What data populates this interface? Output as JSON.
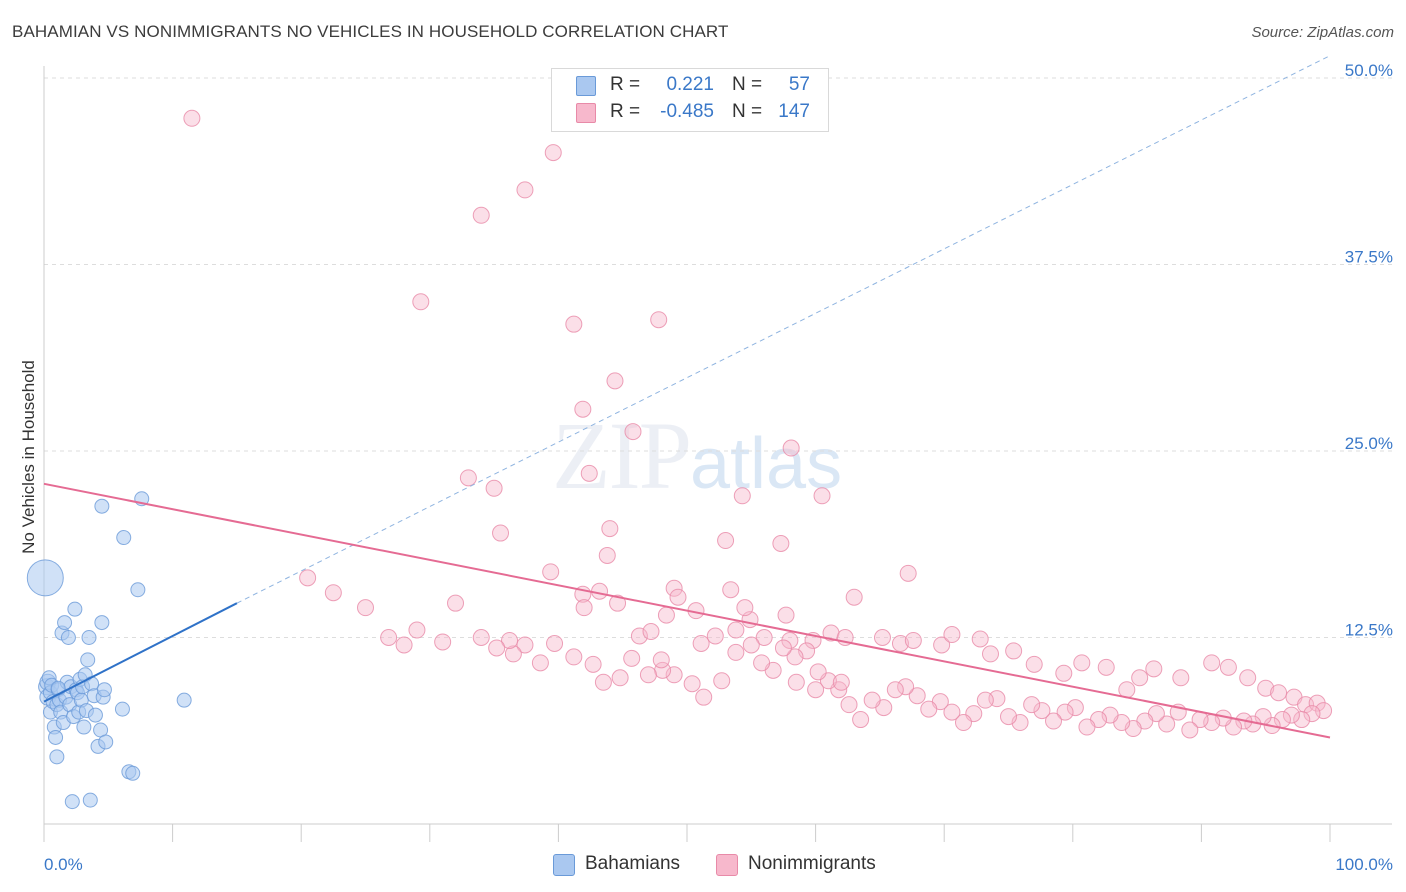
{
  "title": "BAHAMIAN VS NONIMMIGRANTS NO VEHICLES IN HOUSEHOLD CORRELATION CHART",
  "source": "Source: ZipAtlas.com",
  "watermark": {
    "zip": "ZIP",
    "atlas": "atlas"
  },
  "legend": {
    "rows": [
      {
        "r_label": "R =",
        "r_value": "0.221",
        "n_label": "N =",
        "n_value": "57",
        "color": "#aac8f0",
        "border": "#6a9ad8"
      },
      {
        "r_label": "R =",
        "r_value": "-0.485",
        "n_label": "N =",
        "n_value": "147",
        "color": "#f7b8cc",
        "border": "#e88aa8"
      }
    ]
  },
  "bottom_legend": [
    {
      "label": "Bahamians",
      "color": "#aac8f0",
      "border": "#6a9ad8"
    },
    {
      "label": "Nonimmigrants",
      "color": "#f7b8cc",
      "border": "#e88aa8"
    }
  ],
  "chart_data": {
    "type": "scatter",
    "title": "BAHAMIAN VS NONIMMIGRANTS NO VEHICLES IN HOUSEHOLD CORRELATION CHART",
    "xlabel": "",
    "ylabel": "No Vehicles in Household",
    "xlim": [
      0,
      100
    ],
    "ylim": [
      0,
      50
    ],
    "x_tick_labels": [
      "0.0%",
      "100.0%"
    ],
    "y_ticks": [
      12.5,
      25.0,
      37.5,
      50.0
    ],
    "y_tick_labels": [
      "12.5%",
      "25.0%",
      "37.5%",
      "50.0%"
    ],
    "grid": true,
    "legend_position": "top-center",
    "series": [
      {
        "name": "Bahamians",
        "color": "#6a9ad8",
        "fill": "#aac8f0",
        "trend": {
          "x": [
            0,
            15
          ],
          "y": [
            8.2,
            14.8
          ],
          "dashed_extension_to": [
            100,
            51.5
          ],
          "color": "#2f72c8"
        },
        "points": [
          [
            0.1,
            16.5,
            18
          ],
          [
            0.2,
            9.2,
            8
          ],
          [
            0.3,
            9.5,
            8
          ],
          [
            0.3,
            8.5,
            8
          ],
          [
            0.4,
            9.8,
            7
          ],
          [
            0.5,
            8.8,
            7
          ],
          [
            0.5,
            7.5,
            7
          ],
          [
            0.6,
            9.3,
            7
          ],
          [
            0.7,
            8.2,
            7
          ],
          [
            0.8,
            6.5,
            7
          ],
          [
            0.9,
            5.8,
            7
          ],
          [
            1.0,
            4.5,
            7
          ],
          [
            1.0,
            8.0,
            7
          ],
          [
            1.1,
            9.0,
            7
          ],
          [
            1.2,
            8.3,
            7
          ],
          [
            1.3,
            7.5,
            7
          ],
          [
            1.4,
            12.8,
            7
          ],
          [
            1.5,
            6.8,
            7
          ],
          [
            1.6,
            13.5,
            7
          ],
          [
            1.7,
            8.5,
            7
          ],
          [
            1.8,
            9.5,
            7
          ],
          [
            1.9,
            12.5,
            7
          ],
          [
            2.0,
            8.0,
            7
          ],
          [
            2.1,
            9.2,
            7
          ],
          [
            2.2,
            1.5,
            7
          ],
          [
            2.3,
            7.2,
            7
          ],
          [
            2.4,
            14.4,
            7
          ],
          [
            2.5,
            9.0,
            7
          ],
          [
            2.6,
            8.8,
            7
          ],
          [
            2.7,
            7.5,
            7
          ],
          [
            2.8,
            9.7,
            7
          ],
          [
            2.9,
            8.3,
            7
          ],
          [
            3.0,
            9.2,
            7
          ],
          [
            3.1,
            6.5,
            7
          ],
          [
            3.2,
            10.0,
            7
          ],
          [
            3.3,
            7.6,
            7
          ],
          [
            3.4,
            11.0,
            7
          ],
          [
            3.5,
            12.5,
            7
          ],
          [
            3.6,
            1.6,
            7
          ],
          [
            3.7,
            9.4,
            7
          ],
          [
            3.9,
            8.6,
            7
          ],
          [
            4.0,
            7.3,
            7
          ],
          [
            4.2,
            5.2,
            7
          ],
          [
            4.4,
            6.3,
            7
          ],
          [
            4.5,
            13.5,
            7
          ],
          [
            4.6,
            8.5,
            7
          ],
          [
            4.8,
            5.5,
            7
          ],
          [
            4.5,
            21.3,
            7
          ],
          [
            4.7,
            9.0,
            7
          ],
          [
            6.2,
            19.2,
            7
          ],
          [
            6.6,
            3.5,
            7
          ],
          [
            6.9,
            3.4,
            7
          ],
          [
            6.1,
            7.7,
            7
          ],
          [
            7.3,
            15.7,
            7
          ],
          [
            7.6,
            21.8,
            7
          ],
          [
            10.9,
            8.3,
            7
          ],
          [
            1.1,
            9.1,
            7
          ]
        ]
      },
      {
        "name": "Nonimmigrants",
        "color": "#e88aa8",
        "fill": "#f7b8cc",
        "trend": {
          "x": [
            0,
            100
          ],
          "y": [
            22.8,
            5.8
          ],
          "color": "#e56b93"
        },
        "points": [
          [
            11.5,
            47.3
          ],
          [
            34.0,
            40.8
          ],
          [
            37.4,
            42.5
          ],
          [
            39.6,
            45.0
          ],
          [
            29.3,
            35.0
          ],
          [
            41.2,
            33.5
          ],
          [
            47.8,
            33.8
          ],
          [
            44.4,
            29.7
          ],
          [
            41.9,
            27.8
          ],
          [
            45.8,
            26.3
          ],
          [
            42.4,
            23.5
          ],
          [
            35.0,
            22.5
          ],
          [
            33.0,
            23.2
          ],
          [
            54.3,
            22.0
          ],
          [
            58.1,
            25.2
          ],
          [
            60.5,
            22.0
          ],
          [
            35.5,
            19.5
          ],
          [
            43.8,
            18.0
          ],
          [
            44.0,
            19.8
          ],
          [
            53.0,
            19.0
          ],
          [
            57.3,
            18.8
          ],
          [
            39.4,
            16.9
          ],
          [
            49.0,
            15.8
          ],
          [
            63.0,
            15.2
          ],
          [
            67.2,
            16.8
          ],
          [
            53.4,
            15.7
          ],
          [
            48.4,
            14.0
          ],
          [
            57.7,
            14.0
          ],
          [
            54.9,
            13.7
          ],
          [
            56.0,
            12.5
          ],
          [
            43.2,
            15.6
          ],
          [
            44.6,
            14.8
          ],
          [
            41.9,
            15.4
          ],
          [
            49.3,
            15.2
          ],
          [
            54.5,
            14.5
          ],
          [
            50.7,
            14.3
          ],
          [
            46.3,
            12.6
          ],
          [
            47.2,
            12.9
          ],
          [
            51.1,
            12.1
          ],
          [
            52.2,
            12.6
          ],
          [
            58.0,
            12.3
          ],
          [
            59.8,
            12.3
          ],
          [
            61.2,
            12.8
          ],
          [
            62.3,
            12.5
          ],
          [
            65.2,
            12.5
          ],
          [
            66.6,
            12.1
          ],
          [
            67.6,
            12.3
          ],
          [
            69.8,
            12.0
          ],
          [
            70.6,
            12.7
          ],
          [
            72.8,
            12.4
          ],
          [
            73.6,
            11.4
          ],
          [
            75.4,
            11.6
          ],
          [
            77.0,
            10.7
          ],
          [
            79.3,
            10.1
          ],
          [
            80.7,
            10.8
          ],
          [
            82.6,
            10.5
          ],
          [
            84.2,
            9.0
          ],
          [
            85.2,
            9.8
          ],
          [
            86.3,
            10.4
          ],
          [
            88.4,
            9.8
          ],
          [
            90.8,
            10.8
          ],
          [
            92.1,
            10.5
          ],
          [
            93.6,
            9.8
          ],
          [
            95.0,
            9.1
          ],
          [
            96.0,
            8.8
          ],
          [
            97.2,
            8.5
          ],
          [
            98.1,
            8.0
          ],
          [
            99.0,
            8.1
          ],
          [
            99.5,
            7.6
          ],
          [
            98.6,
            7.4
          ],
          [
            97.8,
            7.0
          ],
          [
            97.0,
            7.3
          ],
          [
            96.3,
            7.0
          ],
          [
            95.5,
            6.6
          ],
          [
            94.8,
            7.2
          ],
          [
            94.0,
            6.7
          ],
          [
            93.3,
            6.9
          ],
          [
            92.5,
            6.5
          ],
          [
            91.7,
            7.1
          ],
          [
            90.8,
            6.8
          ],
          [
            89.9,
            7.0
          ],
          [
            89.1,
            6.3
          ],
          [
            88.2,
            7.5
          ],
          [
            87.3,
            6.7
          ],
          [
            86.5,
            7.4
          ],
          [
            85.6,
            6.9
          ],
          [
            84.7,
            6.4
          ],
          [
            83.8,
            6.8
          ],
          [
            82.9,
            7.3
          ],
          [
            82.0,
            7.0
          ],
          [
            81.1,
            6.5
          ],
          [
            80.2,
            7.8
          ],
          [
            79.4,
            7.5
          ],
          [
            78.5,
            6.9
          ],
          [
            77.6,
            7.6
          ],
          [
            76.8,
            8.0
          ],
          [
            75.9,
            6.8
          ],
          [
            75.0,
            7.2
          ],
          [
            74.1,
            8.4
          ],
          [
            73.2,
            8.3
          ],
          [
            72.3,
            7.4
          ],
          [
            71.5,
            6.8
          ],
          [
            70.6,
            7.5
          ],
          [
            69.7,
            8.2
          ],
          [
            68.8,
            7.7
          ],
          [
            67.9,
            8.6
          ],
          [
            67.0,
            9.2
          ],
          [
            66.2,
            9.0
          ],
          [
            65.3,
            7.8
          ],
          [
            64.4,
            8.3
          ],
          [
            63.5,
            7.0
          ],
          [
            62.6,
            8.0
          ],
          [
            61.8,
            9.0
          ],
          [
            61.0,
            9.6
          ],
          [
            60.2,
            10.2
          ],
          [
            59.3,
            11.6
          ],
          [
            58.4,
            11.2
          ],
          [
            57.5,
            11.8
          ],
          [
            56.7,
            10.3
          ],
          [
            55.8,
            10.8
          ],
          [
            55.0,
            12.0
          ],
          [
            53.8,
            11.5
          ],
          [
            52.7,
            9.6
          ],
          [
            51.3,
            8.5
          ],
          [
            50.4,
            9.4
          ],
          [
            49.0,
            10.0
          ],
          [
            48.1,
            10.3
          ],
          [
            47.0,
            10.0
          ],
          [
            45.7,
            11.1
          ],
          [
            44.8,
            9.8
          ],
          [
            43.5,
            9.5
          ],
          [
            42.7,
            10.7
          ],
          [
            41.2,
            11.2
          ],
          [
            39.7,
            12.1
          ],
          [
            38.6,
            10.8
          ],
          [
            37.4,
            12.0
          ],
          [
            36.5,
            11.4
          ],
          [
            36.2,
            12.3
          ],
          [
            35.2,
            11.8
          ],
          [
            34.0,
            12.5
          ],
          [
            31.0,
            12.2
          ],
          [
            29.0,
            13.0
          ],
          [
            28.0,
            12.0
          ],
          [
            26.8,
            12.5
          ],
          [
            25.0,
            14.5
          ],
          [
            22.5,
            15.5
          ],
          [
            20.5,
            16.5
          ],
          [
            32.0,
            14.8
          ],
          [
            42.0,
            14.5
          ],
          [
            48.0,
            11.0
          ],
          [
            53.8,
            13.0
          ],
          [
            58.5,
            9.5
          ],
          [
            60.0,
            9.0
          ],
          [
            62.0,
            9.5
          ]
        ]
      }
    ]
  }
}
